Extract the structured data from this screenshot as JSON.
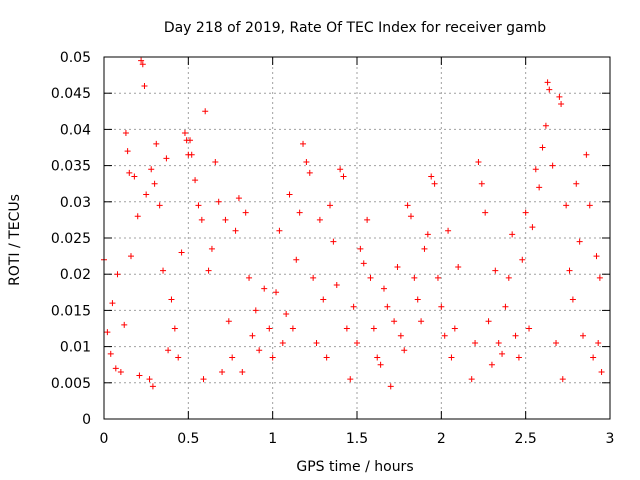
{
  "chart_data": {
    "type": "scatter",
    "title": "Day 218 of 2019, Rate Of TEC Index for receiver gamb",
    "xlabel": "GPS time / hours",
    "ylabel": "ROTI / TECUs",
    "xlim": [
      0,
      3
    ],
    "ylim": [
      0,
      0.05
    ],
    "x_ticks": [
      0,
      0.5,
      1,
      1.5,
      2,
      2.5,
      3
    ],
    "x_tick_labels": [
      "0",
      "0.5",
      "1",
      "1.5",
      "2",
      "2.5",
      "3"
    ],
    "y_ticks": [
      0,
      0.005,
      0.01,
      0.015,
      0.02,
      0.025,
      0.03,
      0.035,
      0.04,
      0.045,
      0.05
    ],
    "y_tick_labels": [
      "0",
      "0.005",
      "0.01",
      "0.015",
      "0.02",
      "0.025",
      "0.03",
      "0.035",
      "0.04",
      "0.045",
      "0.05"
    ],
    "grid": true,
    "marker": "+",
    "marker_color": "#ff0000",
    "series": [
      {
        "name": "ROTI",
        "points": [
          [
            0.0,
            0.022
          ],
          [
            0.02,
            0.012
          ],
          [
            0.04,
            0.009
          ],
          [
            0.05,
            0.016
          ],
          [
            0.07,
            0.007
          ],
          [
            0.08,
            0.02
          ],
          [
            0.1,
            0.0065
          ],
          [
            0.12,
            0.013
          ],
          [
            0.13,
            0.0395
          ],
          [
            0.14,
            0.037
          ],
          [
            0.15,
            0.034
          ],
          [
            0.16,
            0.0225
          ],
          [
            0.18,
            0.0335
          ],
          [
            0.2,
            0.028
          ],
          [
            0.21,
            0.006
          ],
          [
            0.22,
            0.0495
          ],
          [
            0.23,
            0.049
          ],
          [
            0.24,
            0.046
          ],
          [
            0.25,
            0.031
          ],
          [
            0.27,
            0.0055
          ],
          [
            0.28,
            0.0345
          ],
          [
            0.29,
            0.0045
          ],
          [
            0.3,
            0.0325
          ],
          [
            0.31,
            0.038
          ],
          [
            0.33,
            0.0295
          ],
          [
            0.35,
            0.0205
          ],
          [
            0.37,
            0.036
          ],
          [
            0.38,
            0.0095
          ],
          [
            0.4,
            0.0165
          ],
          [
            0.42,
            0.0125
          ],
          [
            0.44,
            0.0085
          ],
          [
            0.46,
            0.023
          ],
          [
            0.48,
            0.0395
          ],
          [
            0.49,
            0.0385
          ],
          [
            0.5,
            0.0365
          ],
          [
            0.51,
            0.0385
          ],
          [
            0.52,
            0.0365
          ],
          [
            0.54,
            0.033
          ],
          [
            0.56,
            0.0295
          ],
          [
            0.58,
            0.0275
          ],
          [
            0.59,
            0.0055
          ],
          [
            0.6,
            0.0425
          ],
          [
            0.62,
            0.0205
          ],
          [
            0.64,
            0.0235
          ],
          [
            0.66,
            0.0355
          ],
          [
            0.68,
            0.03
          ],
          [
            0.7,
            0.0065
          ],
          [
            0.72,
            0.0275
          ],
          [
            0.74,
            0.0135
          ],
          [
            0.76,
            0.0085
          ],
          [
            0.78,
            0.026
          ],
          [
            0.8,
            0.0305
          ],
          [
            0.82,
            0.0065
          ],
          [
            0.84,
            0.0285
          ],
          [
            0.86,
            0.0195
          ],
          [
            0.88,
            0.0115
          ],
          [
            0.9,
            0.015
          ],
          [
            0.92,
            0.0095
          ],
          [
            0.95,
            0.018
          ],
          [
            0.98,
            0.0125
          ],
          [
            1.0,
            0.0085
          ],
          [
            1.02,
            0.0175
          ],
          [
            1.04,
            0.026
          ],
          [
            1.06,
            0.0105
          ],
          [
            1.08,
            0.0145
          ],
          [
            1.1,
            0.031
          ],
          [
            1.12,
            0.0125
          ],
          [
            1.14,
            0.022
          ],
          [
            1.16,
            0.0285
          ],
          [
            1.18,
            0.038
          ],
          [
            1.2,
            0.0355
          ],
          [
            1.22,
            0.034
          ],
          [
            1.24,
            0.0195
          ],
          [
            1.26,
            0.0105
          ],
          [
            1.28,
            0.0275
          ],
          [
            1.3,
            0.0165
          ],
          [
            1.32,
            0.0085
          ],
          [
            1.34,
            0.0295
          ],
          [
            1.36,
            0.0245
          ],
          [
            1.38,
            0.0185
          ],
          [
            1.4,
            0.0345
          ],
          [
            1.42,
            0.0335
          ],
          [
            1.44,
            0.0125
          ],
          [
            1.46,
            0.0055
          ],
          [
            1.48,
            0.0155
          ],
          [
            1.5,
            0.0105
          ],
          [
            1.52,
            0.0235
          ],
          [
            1.54,
            0.0215
          ],
          [
            1.56,
            0.0275
          ],
          [
            1.58,
            0.0195
          ],
          [
            1.6,
            0.0125
          ],
          [
            1.62,
            0.0085
          ],
          [
            1.64,
            0.0075
          ],
          [
            1.66,
            0.018
          ],
          [
            1.68,
            0.0155
          ],
          [
            1.7,
            0.0045
          ],
          [
            1.72,
            0.0135
          ],
          [
            1.74,
            0.021
          ],
          [
            1.76,
            0.0115
          ],
          [
            1.78,
            0.0095
          ],
          [
            1.8,
            0.0295
          ],
          [
            1.82,
            0.028
          ],
          [
            1.84,
            0.0195
          ],
          [
            1.86,
            0.0165
          ],
          [
            1.88,
            0.0135
          ],
          [
            1.9,
            0.0235
          ],
          [
            1.92,
            0.0255
          ],
          [
            1.94,
            0.0335
          ],
          [
            1.96,
            0.0325
          ],
          [
            1.98,
            0.0195
          ],
          [
            2.0,
            0.0155
          ],
          [
            2.02,
            0.0115
          ],
          [
            2.04,
            0.026
          ],
          [
            2.06,
            0.0085
          ],
          [
            2.08,
            0.0125
          ],
          [
            2.1,
            0.021
          ],
          [
            2.18,
            0.0055
          ],
          [
            2.2,
            0.0105
          ],
          [
            2.22,
            0.0355
          ],
          [
            2.24,
            0.0325
          ],
          [
            2.26,
            0.0285
          ],
          [
            2.28,
            0.0135
          ],
          [
            2.3,
            0.0075
          ],
          [
            2.32,
            0.0205
          ],
          [
            2.34,
            0.0105
          ],
          [
            2.36,
            0.009
          ],
          [
            2.38,
            0.0155
          ],
          [
            2.4,
            0.0195
          ],
          [
            2.42,
            0.0255
          ],
          [
            2.44,
            0.0115
          ],
          [
            2.46,
            0.0085
          ],
          [
            2.48,
            0.022
          ],
          [
            2.5,
            0.0285
          ],
          [
            2.52,
            0.0125
          ],
          [
            2.54,
            0.0265
          ],
          [
            2.56,
            0.0345
          ],
          [
            2.58,
            0.032
          ],
          [
            2.6,
            0.0375
          ],
          [
            2.62,
            0.0405
          ],
          [
            2.63,
            0.0465
          ],
          [
            2.64,
            0.0455
          ],
          [
            2.66,
            0.035
          ],
          [
            2.68,
            0.0105
          ],
          [
            2.7,
            0.0445
          ],
          [
            2.71,
            0.0435
          ],
          [
            2.72,
            0.0055
          ],
          [
            2.74,
            0.0295
          ],
          [
            2.76,
            0.0205
          ],
          [
            2.78,
            0.0165
          ],
          [
            2.8,
            0.0325
          ],
          [
            2.82,
            0.0245
          ],
          [
            2.84,
            0.0115
          ],
          [
            2.86,
            0.0365
          ],
          [
            2.88,
            0.0295
          ],
          [
            2.9,
            0.0085
          ],
          [
            2.92,
            0.0225
          ],
          [
            2.93,
            0.0105
          ],
          [
            2.94,
            0.0195
          ],
          [
            2.95,
            0.0065
          ]
        ]
      }
    ]
  }
}
